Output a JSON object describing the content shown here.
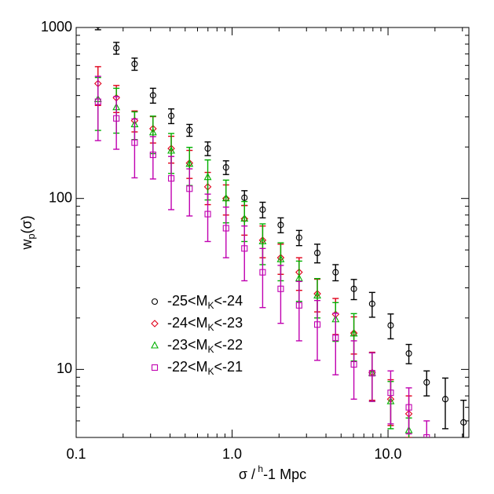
{
  "chart_data": {
    "type": "scatter",
    "xlabel": "σ / h-1 Mpc",
    "ylabel": "wp(σ)",
    "xscale": "log",
    "yscale": "log",
    "xlim": [
      0.1,
      33
    ],
    "ylim": [
      4,
      1000
    ],
    "xticks": [
      0.1,
      {
        "value": 1,
        "label": "1.0"
      },
      {
        "value": 10,
        "label": "10.0"
      }
    ],
    "yticks": [
      10,
      100,
      1000
    ],
    "series": [
      {
        "name": "-25<MK<-24",
        "marker": "circle",
        "color": "#000000",
        "x": [
          0.138,
          0.181,
          0.237,
          0.311,
          0.407,
          0.533,
          0.698,
          0.914,
          1.2,
          1.57,
          2.05,
          2.69,
          3.52,
          4.61,
          6.04,
          7.91,
          10.4,
          13.6,
          17.7,
          23.3,
          30.5
        ],
        "values": [
          1030,
          758,
          612,
          401,
          304,
          251,
          196,
          152,
          101,
          86,
          70,
          59,
          48,
          37,
          29.6,
          24.2,
          18.1,
          12.4,
          8.4,
          6.7,
          4.9
        ],
        "errors": [
          60,
          60,
          50,
          40,
          30,
          20,
          18,
          14,
          10,
          9,
          7,
          6,
          6,
          4,
          4,
          4,
          3,
          1.6,
          1.4,
          2.2,
          1.7
        ]
      },
      {
        "name": "-24<MK<-23",
        "marker": "diamond",
        "color": "#e0001a",
        "x": [
          0.138,
          0.181,
          0.237,
          0.311,
          0.407,
          0.533,
          0.698,
          0.914,
          1.2,
          1.57,
          2.05,
          2.69,
          3.52,
          4.61,
          6.04,
          7.91,
          10.4,
          13.6
        ],
        "values": [
          470,
          388,
          285,
          256,
          196,
          161,
          117,
          100,
          76,
          57,
          45,
          37,
          27.7,
          21,
          16.3,
          9.6,
          6.7,
          5.5
        ],
        "errors": [
          120,
          70,
          40,
          45,
          35,
          30,
          25,
          20,
          15,
          12,
          9,
          8,
          6,
          5,
          4,
          3,
          2,
          1.5
        ]
      },
      {
        "name": "-23<MK<-22",
        "marker": "triangle",
        "color": "#00b000",
        "x": [
          0.138,
          0.181,
          0.237,
          0.311,
          0.407,
          0.533,
          0.698,
          0.914,
          1.2,
          1.57,
          2.05,
          2.69,
          3.52,
          4.61,
          6.04,
          7.91,
          10.4,
          13.6
        ],
        "values": [
          380,
          341,
          271,
          243,
          190,
          159,
          133,
          100,
          76,
          56,
          44,
          34,
          27,
          19.6,
          16.2,
          9.5,
          6.5,
          4.4
        ],
        "errors": [
          130,
          100,
          50,
          60,
          50,
          40,
          35,
          28,
          20,
          15,
          11,
          9,
          7,
          5,
          5,
          3,
          2,
          0.8
        ]
      },
      {
        "name": "-22<MK<-21",
        "marker": "square",
        "color": "#c000b0",
        "x": [
          0.138,
          0.181,
          0.237,
          0.311,
          0.407,
          0.533,
          0.698,
          0.914,
          1.2,
          1.57,
          2.05,
          2.69,
          3.52,
          4.61,
          6.04,
          7.91,
          10.4,
          13.6,
          17.7
        ],
        "values": [
          368,
          294,
          212,
          180,
          131,
          114,
          81,
          67,
          51,
          37,
          29.6,
          23.7,
          18.3,
          15.3,
          10.7,
          9.5,
          7.3,
          6.0,
          4.0
        ],
        "errors": [
          150,
          100,
          80,
          50,
          45,
          35,
          25,
          22,
          18,
          14,
          11,
          9,
          7,
          6,
          4,
          3,
          2.5,
          1.8,
          1
        ]
      }
    ]
  }
}
